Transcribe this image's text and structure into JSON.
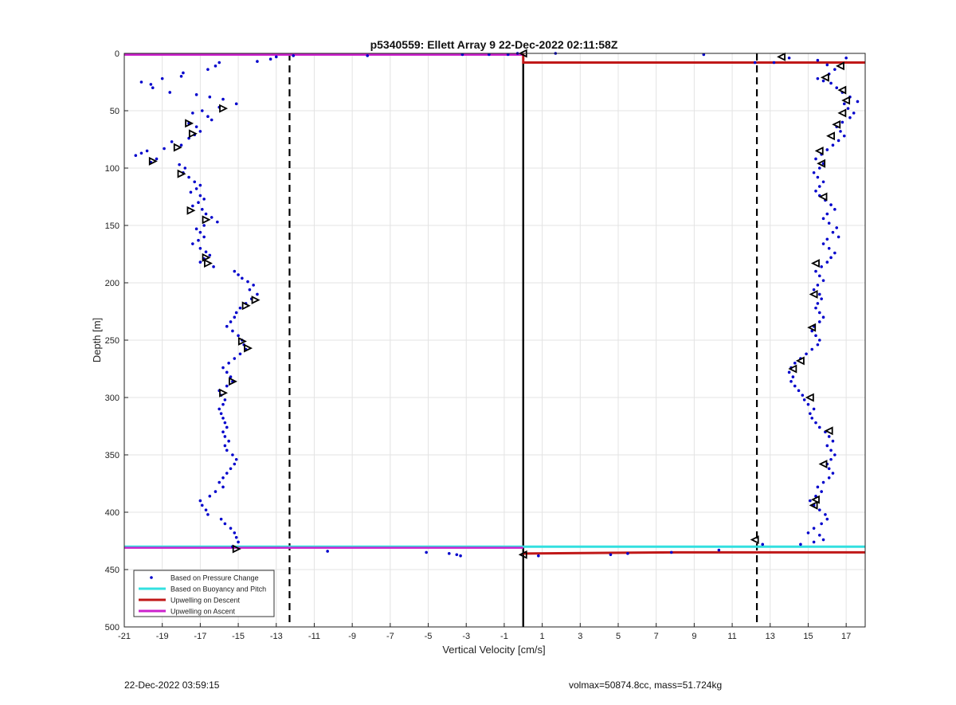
{
  "chart_data": {
    "type": "scatter",
    "title": "p5340559: Ellett Array 9 22-Dec-2022 02:11:58Z",
    "xlabel": "Vertical Velocity [cm/s]",
    "ylabel": "Depth [m]",
    "xlim": [
      -21,
      18
    ],
    "ylim": [
      0,
      500
    ],
    "y_reversed": true,
    "grid": true,
    "x_ticks": [
      -21,
      -19,
      -17,
      -15,
      -13,
      -11,
      -9,
      -7,
      -5,
      -3,
      -1,
      1,
      3,
      5,
      7,
      9,
      11,
      13,
      15,
      17
    ],
    "x_tick_labels": [
      "-21",
      "-19",
      "-17",
      "-15",
      "-13",
      "-11",
      "-9",
      "-7",
      "-5",
      "-3",
      "-1",
      "1",
      "3",
      "5",
      "7",
      "9",
      "11",
      "13",
      "15",
      "17"
    ],
    "y_ticks": [
      0,
      50,
      100,
      150,
      200,
      250,
      300,
      350,
      400,
      450,
      500
    ],
    "y_tick_labels": [
      "0",
      "50",
      "100",
      "150",
      "200",
      "250",
      "300",
      "350",
      "400",
      "450",
      "500"
    ],
    "legend_position": "bottom-left",
    "legend": [
      {
        "label": "Based on Pressure Change",
        "kind": "marker",
        "color": "#0000cc"
      },
      {
        "label": "Based on Buoyancy and Pitch",
        "kind": "line",
        "color": "#33e0e0"
      },
      {
        "label": "Upwelling on Descent",
        "kind": "line",
        "color": "#c01818"
      },
      {
        "label": "Upwelling on Ascent",
        "kind": "line",
        "color": "#cc22cc"
      }
    ],
    "reference_lines": {
      "zero_x": 0,
      "dashed_x": [
        -12.3,
        12.3
      ]
    },
    "buoyancy_pitch_line": {
      "color": "#33e0e0",
      "points": [
        [
          -21,
          430
        ],
        [
          0,
          430
        ],
        [
          18,
          430
        ]
      ]
    },
    "upwelling_descent": {
      "color": "#c01818",
      "points": [
        [
          0,
          0
        ],
        [
          0,
          8
        ],
        [
          18,
          8
        ]
      ],
      "points_bottom": [
        [
          0,
          436
        ],
        [
          8,
          435
        ],
        [
          18,
          435
        ]
      ]
    },
    "upwelling_ascent": {
      "color": "#cc22cc",
      "points": [
        [
          -21,
          1
        ],
        [
          0,
          1
        ]
      ],
      "points_bottom": [
        [
          -21,
          431
        ],
        [
          0,
          431
        ]
      ]
    },
    "series": [
      {
        "name": "Based on Pressure Change",
        "color": "#0000cc",
        "points": [
          [
            -12.1,
            2
          ],
          [
            -8.2,
            2
          ],
          [
            -3.2,
            1
          ],
          [
            -1.8,
            1
          ],
          [
            -0.8,
            1
          ],
          [
            -0.3,
            0
          ],
          [
            1.7,
            0
          ],
          [
            9.5,
            1
          ],
          [
            12.2,
            8
          ],
          [
            -13.0,
            3
          ],
          [
            -13.3,
            5
          ],
          [
            -14.0,
            7
          ],
          [
            -16.0,
            8
          ],
          [
            -16.2,
            11
          ],
          [
            -16.6,
            14
          ],
          [
            -17.9,
            17
          ],
          [
            -18.0,
            20
          ],
          [
            -19.0,
            22
          ],
          [
            -19.6,
            27
          ],
          [
            -20.1,
            25
          ],
          [
            -19.5,
            30
          ],
          [
            -18.6,
            34
          ],
          [
            -17.2,
            36
          ],
          [
            -16.5,
            38
          ],
          [
            -15.8,
            40
          ],
          [
            -15.1,
            44
          ],
          [
            -16.0,
            47
          ],
          [
            -16.9,
            50
          ],
          [
            -17.4,
            52
          ],
          [
            -16.6,
            55
          ],
          [
            -16.4,
            58
          ],
          [
            -17.6,
            61
          ],
          [
            -17.2,
            64
          ],
          [
            -17.0,
            68
          ],
          [
            -17.3,
            71
          ],
          [
            -17.6,
            74
          ],
          [
            -18.5,
            77
          ],
          [
            -18.0,
            80
          ],
          [
            -18.9,
            83
          ],
          [
            -19.8,
            85
          ],
          [
            -20.1,
            87
          ],
          [
            -20.4,
            89
          ],
          [
            -19.3,
            92
          ],
          [
            -19.6,
            95
          ],
          [
            -18.1,
            97
          ],
          [
            -17.8,
            100
          ],
          [
            -17.9,
            104
          ],
          [
            -17.6,
            108
          ],
          [
            -17.3,
            112
          ],
          [
            -17.0,
            115
          ],
          [
            -17.2,
            118
          ],
          [
            -17.5,
            121
          ],
          [
            -17.0,
            124
          ],
          [
            -16.8,
            127
          ],
          [
            -17.1,
            130
          ],
          [
            -17.4,
            133
          ],
          [
            -16.9,
            136
          ],
          [
            -16.7,
            140
          ],
          [
            -16.4,
            143
          ],
          [
            -16.1,
            147
          ],
          [
            -16.8,
            150
          ],
          [
            -17.2,
            153
          ],
          [
            -17.0,
            156
          ],
          [
            -16.8,
            160
          ],
          [
            -17.1,
            163
          ],
          [
            -17.4,
            166
          ],
          [
            -17.0,
            170
          ],
          [
            -16.7,
            173
          ],
          [
            -16.5,
            176
          ],
          [
            -16.8,
            179
          ],
          [
            -17.0,
            182
          ],
          [
            -16.3,
            186
          ],
          [
            -15.2,
            190
          ],
          [
            -15.0,
            193
          ],
          [
            -14.8,
            196
          ],
          [
            -14.5,
            199
          ],
          [
            -14.2,
            202
          ],
          [
            -14.4,
            206
          ],
          [
            -14.0,
            210
          ],
          [
            -14.3,
            214
          ],
          [
            -14.6,
            218
          ],
          [
            -14.9,
            222
          ],
          [
            -15.1,
            226
          ],
          [
            -15.2,
            230
          ],
          [
            -15.4,
            234
          ],
          [
            -15.6,
            238
          ],
          [
            -15.3,
            242
          ],
          [
            -15.0,
            246
          ],
          [
            -14.8,
            250
          ],
          [
            -14.7,
            254
          ],
          [
            -14.6,
            258
          ],
          [
            -14.9,
            262
          ],
          [
            -15.2,
            266
          ],
          [
            -15.5,
            270
          ],
          [
            -15.8,
            274
          ],
          [
            -15.6,
            278
          ],
          [
            -15.4,
            282
          ],
          [
            -15.3,
            286
          ],
          [
            -15.6,
            290
          ],
          [
            -16.0,
            294
          ],
          [
            -15.9,
            298
          ],
          [
            -15.7,
            302
          ],
          [
            -15.8,
            306
          ],
          [
            -16.0,
            310
          ],
          [
            -15.9,
            314
          ],
          [
            -15.8,
            318
          ],
          [
            -15.7,
            322
          ],
          [
            -15.6,
            326
          ],
          [
            -15.8,
            330
          ],
          [
            -15.7,
            334
          ],
          [
            -15.5,
            338
          ],
          [
            -15.7,
            342
          ],
          [
            -15.6,
            346
          ],
          [
            -15.3,
            350
          ],
          [
            -15.1,
            354
          ],
          [
            -15.2,
            358
          ],
          [
            -15.4,
            362
          ],
          [
            -15.6,
            366
          ],
          [
            -15.8,
            370
          ],
          [
            -16.0,
            374
          ],
          [
            -15.8,
            378
          ],
          [
            -16.2,
            382
          ],
          [
            -16.5,
            386
          ],
          [
            -17.0,
            390
          ],
          [
            -16.9,
            394
          ],
          [
            -16.7,
            398
          ],
          [
            -16.6,
            402
          ],
          [
            -15.9,
            406
          ],
          [
            -15.7,
            410
          ],
          [
            -15.4,
            414
          ],
          [
            -15.2,
            418
          ],
          [
            -15.1,
            422
          ],
          [
            -15.0,
            426
          ],
          [
            -15.3,
            430
          ],
          [
            -10.3,
            434
          ],
          [
            -5.1,
            435
          ],
          [
            -3.9,
            436
          ],
          [
            -3.5,
            437
          ],
          [
            -3.3,
            438
          ],
          [
            0.8,
            438
          ],
          [
            4.6,
            437
          ],
          [
            5.5,
            436
          ],
          [
            7.8,
            435
          ],
          [
            10.3,
            433
          ],
          [
            12.6,
            428
          ],
          [
            14.6,
            428
          ],
          [
            15.3,
            426
          ],
          [
            15.8,
            424
          ],
          [
            15.6,
            420
          ],
          [
            15.0,
            418
          ],
          [
            15.3,
            414
          ],
          [
            15.7,
            410
          ],
          [
            16.0,
            406
          ],
          [
            15.9,
            402
          ],
          [
            15.6,
            398
          ],
          [
            15.3,
            394
          ],
          [
            15.1,
            390
          ],
          [
            15.4,
            386
          ],
          [
            15.7,
            382
          ],
          [
            15.5,
            378
          ],
          [
            15.8,
            374
          ],
          [
            16.1,
            370
          ],
          [
            16.3,
            366
          ],
          [
            16.1,
            362
          ],
          [
            16.0,
            358
          ],
          [
            16.2,
            354
          ],
          [
            16.4,
            350
          ],
          [
            16.2,
            346
          ],
          [
            16.0,
            342
          ],
          [
            16.3,
            338
          ],
          [
            16.1,
            334
          ],
          [
            15.9,
            330
          ],
          [
            15.6,
            326
          ],
          [
            15.4,
            322
          ],
          [
            15.2,
            318
          ],
          [
            15.1,
            314
          ],
          [
            15.3,
            310
          ],
          [
            15.0,
            306
          ],
          [
            14.8,
            302
          ],
          [
            14.7,
            298
          ],
          [
            14.5,
            294
          ],
          [
            14.3,
            290
          ],
          [
            14.1,
            286
          ],
          [
            14.2,
            282
          ],
          [
            14.0,
            278
          ],
          [
            14.1,
            274
          ],
          [
            14.3,
            270
          ],
          [
            14.6,
            266
          ],
          [
            14.9,
            262
          ],
          [
            15.2,
            258
          ],
          [
            15.5,
            254
          ],
          [
            15.6,
            250
          ],
          [
            15.4,
            246
          ],
          [
            15.2,
            242
          ],
          [
            15.3,
            238
          ],
          [
            15.6,
            234
          ],
          [
            15.8,
            230
          ],
          [
            15.6,
            226
          ],
          [
            15.4,
            222
          ],
          [
            15.5,
            218
          ],
          [
            15.7,
            214
          ],
          [
            15.6,
            210
          ],
          [
            15.3,
            206
          ],
          [
            15.5,
            202
          ],
          [
            15.8,
            198
          ],
          [
            15.6,
            194
          ],
          [
            15.4,
            190
          ],
          [
            15.7,
            186
          ],
          [
            16.0,
            182
          ],
          [
            16.2,
            178
          ],
          [
            16.4,
            174
          ],
          [
            16.1,
            170
          ],
          [
            15.8,
            166
          ],
          [
            16.0,
            162
          ],
          [
            16.6,
            160
          ],
          [
            16.3,
            156
          ],
          [
            16.5,
            152
          ],
          [
            16.1,
            148
          ],
          [
            15.8,
            144
          ],
          [
            16.0,
            140
          ],
          [
            16.4,
            136
          ],
          [
            16.2,
            132
          ],
          [
            15.9,
            128
          ],
          [
            15.6,
            124
          ],
          [
            15.4,
            120
          ],
          [
            15.6,
            116
          ],
          [
            15.8,
            112
          ],
          [
            15.5,
            108
          ],
          [
            15.3,
            104
          ],
          [
            15.6,
            100
          ],
          [
            15.8,
            96
          ],
          [
            15.4,
            92
          ],
          [
            15.7,
            88
          ],
          [
            16.0,
            84
          ],
          [
            16.3,
            80
          ],
          [
            16.6,
            76
          ],
          [
            16.9,
            72
          ],
          [
            16.7,
            68
          ],
          [
            16.5,
            64
          ],
          [
            16.8,
            60
          ],
          [
            17.2,
            56
          ],
          [
            17.4,
            52
          ],
          [
            17.1,
            48
          ],
          [
            16.9,
            44
          ],
          [
            17.6,
            42
          ],
          [
            17.2,
            38
          ],
          [
            16.8,
            34
          ],
          [
            16.5,
            30
          ],
          [
            16.2,
            26
          ],
          [
            15.8,
            24
          ],
          [
            15.5,
            22
          ],
          [
            16.1,
            18
          ],
          [
            16.4,
            14
          ],
          [
            16.0,
            10
          ],
          [
            15.5,
            6
          ],
          [
            17.0,
            4
          ],
          [
            14.0,
            4
          ],
          [
            13.2,
            8
          ]
        ]
      }
    ],
    "markers_triangles": [
      [
        -15.8,
        48
      ],
      [
        -17.6,
        61
      ],
      [
        -17.4,
        70
      ],
      [
        -18.2,
        82
      ],
      [
        -19.5,
        94
      ],
      [
        -18.0,
        105
      ],
      [
        -17.5,
        137
      ],
      [
        -16.7,
        145
      ],
      [
        -16.7,
        178
      ],
      [
        -16.6,
        183
      ],
      [
        -14.1,
        215
      ],
      [
        -14.6,
        220
      ],
      [
        -14.8,
        251
      ],
      [
        -14.5,
        257
      ],
      [
        -15.3,
        286
      ],
      [
        -15.8,
        296
      ],
      [
        -15.1,
        432
      ],
      [
        13.6,
        3
      ],
      [
        16.7,
        11
      ],
      [
        15.9,
        21
      ],
      [
        16.8,
        32
      ],
      [
        17.0,
        41
      ],
      [
        16.8,
        52
      ],
      [
        16.5,
        62
      ],
      [
        16.2,
        72
      ],
      [
        15.6,
        85
      ],
      [
        15.7,
        96
      ],
      [
        15.8,
        125
      ],
      [
        15.4,
        183
      ],
      [
        15.3,
        210
      ],
      [
        15.2,
        239
      ],
      [
        14.6,
        268
      ],
      [
        14.2,
        275
      ],
      [
        15.1,
        300
      ],
      [
        16.1,
        329
      ],
      [
        15.8,
        358
      ],
      [
        15.4,
        389
      ],
      [
        15.3,
        394
      ],
      [
        12.2,
        424
      ],
      [
        0.0,
        0
      ],
      [
        0.0,
        437
      ]
    ]
  },
  "footer": {
    "timestamp": "22-Dec-2022 03:59:15",
    "metrics": "volmax=50874.8cc, mass=51.724kg"
  }
}
